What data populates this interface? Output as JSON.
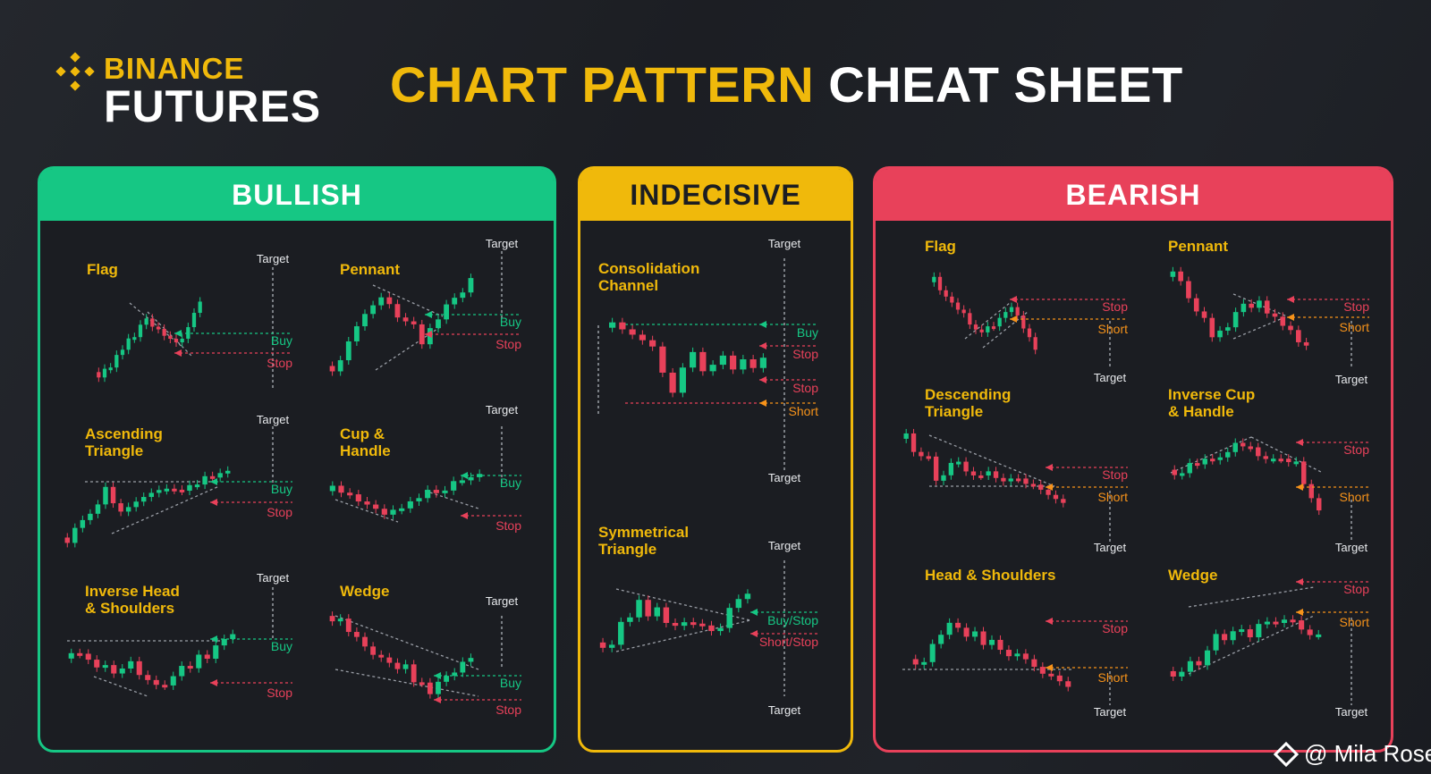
{
  "header": {
    "logo_top": "BINANCE",
    "logo_bottom": "FUTURES",
    "title_highlight": "CHART PATTERN",
    "title_rest": "CHEAT SHEET"
  },
  "colors": {
    "bullish": "#16c784",
    "indecisive": "#f0b90b",
    "bearish": "#e8415a",
    "short": "#f7931a",
    "brand": "#f0b90b",
    "background": "#1d1f24"
  },
  "credit": "@ Mila Rose",
  "panels": [
    {
      "key": "bullish",
      "title": "BULLISH",
      "patterns": [
        {
          "name": [
            "Flag"
          ],
          "levels": [
            "Target",
            "Buy",
            "Stop"
          ]
        },
        {
          "name": [
            "Pennant"
          ],
          "levels": [
            "Target",
            "Buy",
            "Stop"
          ]
        },
        {
          "name": [
            "Ascending",
            "Triangle"
          ],
          "levels": [
            "Target",
            "Buy",
            "Stop"
          ]
        },
        {
          "name": [
            "Cup &",
            "Handle"
          ],
          "levels": [
            "Target",
            "Buy",
            "Stop"
          ]
        },
        {
          "name": [
            "Inverse Head",
            "& Shoulders"
          ],
          "levels": [
            "Target",
            "Buy",
            "Stop"
          ]
        },
        {
          "name": [
            "Wedge"
          ],
          "levels": [
            "Target",
            "Buy",
            "Stop"
          ]
        }
      ]
    },
    {
      "key": "indecisive",
      "title": "INDECISIVE",
      "patterns": [
        {
          "name": [
            "Consolidation",
            "Channel"
          ],
          "levels": [
            "Target",
            "Buy",
            "Stop",
            "Stop",
            "Short",
            "Target"
          ]
        },
        {
          "name": [
            "Symmetrical",
            "Triangle"
          ],
          "levels": [
            "Target",
            "Buy/Stop",
            "Short/Stop",
            "Target"
          ]
        }
      ]
    },
    {
      "key": "bearish",
      "title": "BEARISH",
      "patterns": [
        {
          "name": [
            "Flag"
          ],
          "levels": [
            "Stop",
            "Short",
            "Target"
          ]
        },
        {
          "name": [
            "Pennant"
          ],
          "levels": [
            "Stop",
            "Short",
            "Target"
          ]
        },
        {
          "name": [
            "Descending",
            "Triangle"
          ],
          "levels": [
            "Stop",
            "Short",
            "Target"
          ]
        },
        {
          "name": [
            "Inverse Cup",
            "& Handle"
          ],
          "levels": [
            "Stop",
            "Short",
            "Target"
          ]
        },
        {
          "name": [
            "Head & Shoulders"
          ],
          "levels": [
            "Stop",
            "Short",
            "Target"
          ]
        },
        {
          "name": [
            "Wedge"
          ],
          "levels": [
            "Stop",
            "Short",
            "Target"
          ]
        }
      ]
    }
  ]
}
